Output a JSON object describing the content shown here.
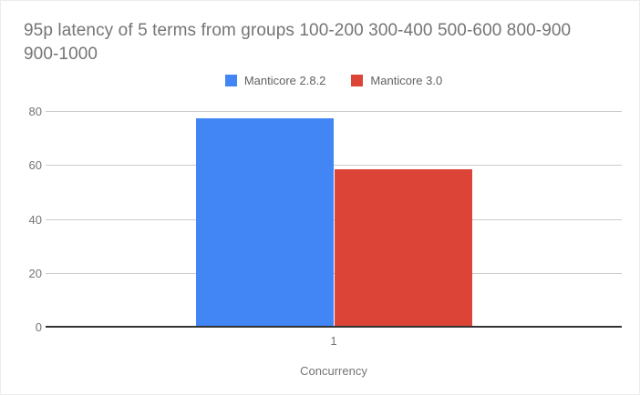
{
  "title": {
    "line1": "95p latency of 5 terms from groups 100-200 300-400 500-600 800-900",
    "line2": "900-1000"
  },
  "legend": {
    "items": [
      {
        "label": "Manticore 2.8.2",
        "color": "#4285f4"
      },
      {
        "label": "Manticore 3.0",
        "color": "#db4437"
      }
    ]
  },
  "chart_data": {
    "type": "bar",
    "title": "95p latency of 5 terms from groups 100-200 300-400 500-600 800-900 900-1000",
    "categories": [
      "1"
    ],
    "series": [
      {
        "name": "Manticore 2.8.2",
        "color": "#4285f4",
        "values": [
          77.3
        ]
      },
      {
        "name": "Manticore 3.0",
        "color": "#db4437",
        "values": [
          58.4
        ]
      }
    ],
    "xlabel": "Concurrency",
    "ylabel": "",
    "ylim": [
      0,
      80
    ],
    "yticks": [
      0,
      20,
      40,
      60,
      80
    ],
    "grid": true,
    "legend_position": "top"
  },
  "colors": {
    "title_text": "#757575",
    "axis_label_text": "#757575",
    "gridline": "#cccccc",
    "axis_line": "#333333",
    "background": "#ffffff"
  }
}
